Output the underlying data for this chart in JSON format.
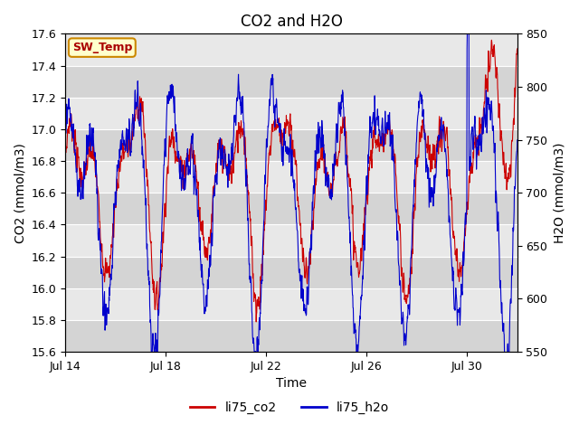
{
  "title": "CO2 and H2O",
  "xlabel": "Time",
  "ylabel_left": "CO2 (mmol/m3)",
  "ylabel_right": "H2O (mmol/m3)",
  "ylim_left": [
    15.6,
    17.6
  ],
  "ylim_right": [
    550,
    850
  ],
  "yticks_left": [
    15.6,
    15.8,
    16.0,
    16.2,
    16.4,
    16.6,
    16.8,
    17.0,
    17.2,
    17.4,
    17.6
  ],
  "yticks_right": [
    550,
    600,
    650,
    700,
    750,
    800,
    850
  ],
  "xtick_labels": [
    "Jul 14",
    "Jul 18",
    "Jul 22",
    "Jul 26",
    "Jul 30"
  ],
  "legend_labels": [
    "li75_co2",
    "li75_h2o"
  ],
  "legend_colors": [
    "#cc0000",
    "#0000cc"
  ],
  "sw_temp_label": "SW_Temp",
  "sw_temp_facecolor": "#ffffcc",
  "sw_temp_edgecolor": "#cc8800",
  "sw_temp_textcolor": "#aa0000",
  "line_color_co2": "#cc0000",
  "line_color_h2o": "#0000cc",
  "background_color": "#ffffff",
  "plot_bg_color": "#e8e8e8",
  "band_light": "#e8e8e8",
  "band_dark": "#d4d4d4",
  "title_fontsize": 12,
  "axis_label_fontsize": 10,
  "tick_fontsize": 9,
  "legend_fontsize": 10
}
